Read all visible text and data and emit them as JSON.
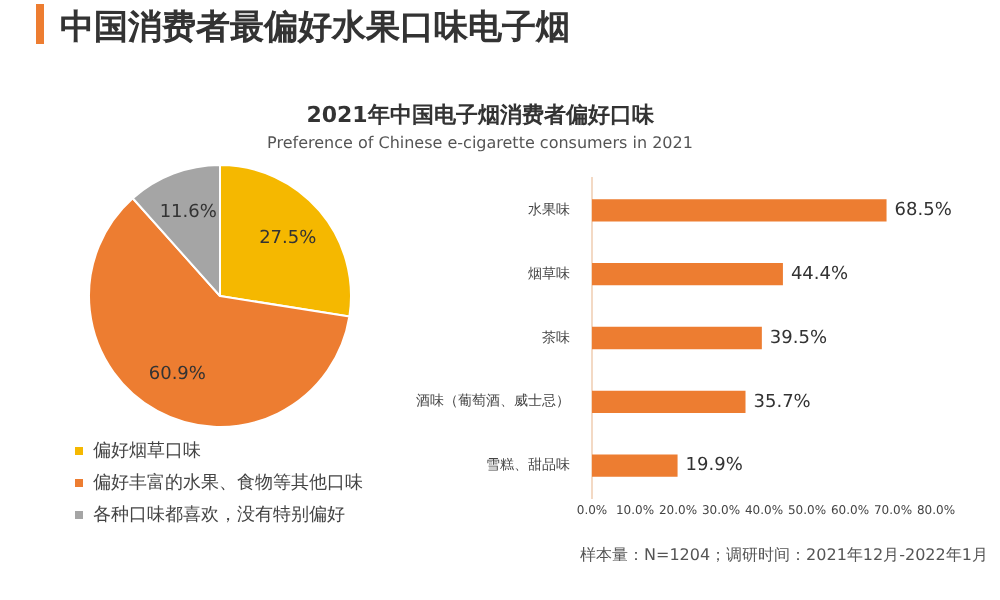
{
  "chart_data": [
    {
      "type": "pie",
      "title": "中国消费者最偏好水果口味电子烟",
      "subtitle": "2021年中国电子烟消费者偏好口味",
      "annotations": [
        "Preference of Chinese e-cigarette consumers in 2021"
      ],
      "categories": [
        "偏好烟草口味",
        "偏好丰富的水果、食物等其他口味",
        "各种口味都喜欢，没有特别偏好"
      ],
      "values": [
        27.5,
        60.9,
        11.6
      ],
      "colors": [
        "#f5b800",
        "#ed7d31",
        "#a5a5a5"
      ],
      "value_labels": [
        "27.5%",
        "60.9%",
        "11.6%"
      ],
      "legend": "bottom"
    },
    {
      "type": "bar",
      "orientation": "horizontal",
      "categories": [
        "水果味",
        "烟草味",
        "茶味",
        "酒味（葡萄酒、威士忌）",
        "雪糕、甜品味"
      ],
      "values": [
        68.5,
        44.4,
        39.5,
        35.7,
        19.9
      ],
      "color": "#ed7d31",
      "value_labels": [
        "68.5%",
        "44.4%",
        "39.5%",
        "35.7%",
        "19.9%"
      ],
      "xlim": [
        0,
        80
      ],
      "xticks": [
        {
          "value": 0,
          "label": "0.0%"
        },
        {
          "value": 10,
          "label": "10.0%"
        },
        {
          "value": 20,
          "label": "20.0%"
        },
        {
          "value": 30,
          "label": "30.0%"
        },
        {
          "value": 40,
          "label": "40.0%"
        },
        {
          "value": 50,
          "label": "50.0%"
        },
        {
          "value": 60,
          "label": "60.0%"
        },
        {
          "value": 70,
          "label": "70.0%"
        },
        {
          "value": 80,
          "label": "80.0%"
        }
      ],
      "annotations": [
        "样本量：N=1204；调研时间：2021年12月-2022年1月"
      ]
    }
  ]
}
